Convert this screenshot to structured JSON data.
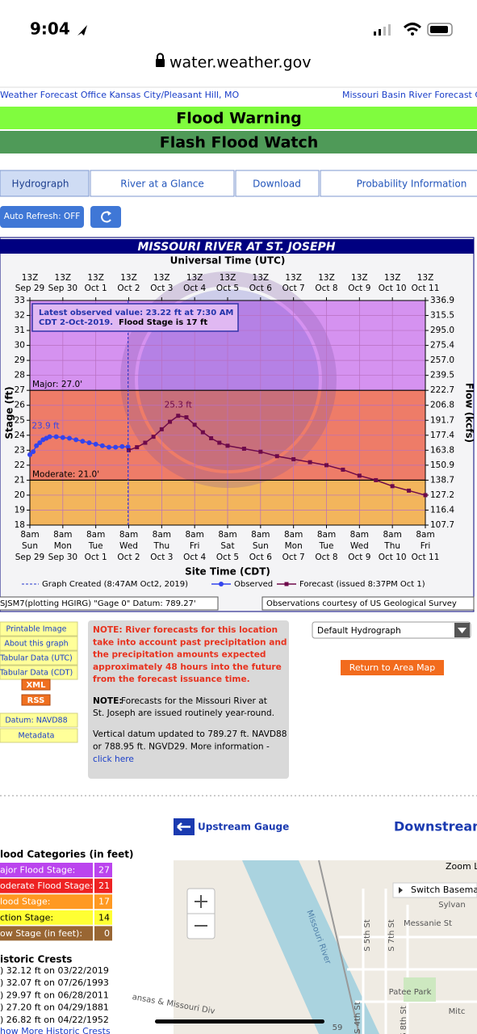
{
  "status_bar": {
    "time": "9:04"
  },
  "browser": {
    "url": "water.weather.gov"
  },
  "header": {
    "left_link": "Weather Forecast Office Kansas City/Pleasant Hill, MO",
    "right_link": "Missouri Basin River Forecast C"
  },
  "banners": [
    "Flood Warning",
    "Flash Flood Watch"
  ],
  "tabs": [
    "Hydrograph",
    "River at a Glance",
    "Download",
    "Probability Information"
  ],
  "auto_refresh": "Auto Refresh: OFF",
  "chart_data": {
    "type": "line",
    "title": "MISSOURI RIVER AT ST. JOSEPH",
    "subtitle": "Universal Time (UTC)",
    "x_label": "Site Time (CDT)",
    "y_label": "Stage (ft)",
    "y2_label": "Flow (kcfs)",
    "xlim": [
      0,
      12
    ],
    "ylim": [
      18,
      33
    ],
    "yticks": [
      18,
      19,
      20,
      21,
      22,
      23,
      24,
      25,
      26,
      27,
      28,
      29,
      30,
      31,
      32,
      33
    ],
    "flow_ticks": [
      {
        "value": 18,
        "label": "107.7"
      },
      {
        "value": 19,
        "label": "116.4"
      },
      {
        "value": 20,
        "label": "127.2"
      },
      {
        "value": 21,
        "label": "138.7"
      },
      {
        "value": 22,
        "label": "150.9"
      },
      {
        "value": 23,
        "label": "163.8"
      },
      {
        "value": 24,
        "label": "177.4"
      },
      {
        "value": 25,
        "label": "191.7"
      },
      {
        "value": 26,
        "label": "206.8"
      },
      {
        "value": 27,
        "label": "222.7"
      },
      {
        "value": 28,
        "label": "239.5"
      },
      {
        "value": 29,
        "label": "257.0"
      },
      {
        "value": 30,
        "label": "275.4"
      },
      {
        "value": 31,
        "label": "295.0"
      },
      {
        "value": 32,
        "label": "315.5"
      },
      {
        "value": 33,
        "label": "336.9"
      }
    ],
    "xticks": [
      {
        "value": 0,
        "label": "8am"
      },
      {
        "value": 1,
        "label": "8am"
      },
      {
        "value": 2,
        "label": "8am"
      },
      {
        "value": 3,
        "label": "8am"
      },
      {
        "value": 4,
        "label": "8am"
      },
      {
        "value": 5,
        "label": "8am"
      },
      {
        "value": 6,
        "label": "8am"
      },
      {
        "value": 7,
        "label": "8am"
      },
      {
        "value": 8,
        "label": "8am"
      },
      {
        "value": 9,
        "label": "8am"
      },
      {
        "value": 10,
        "label": "8am"
      },
      {
        "value": 11,
        "label": "8am"
      },
      {
        "value": 12,
        "label": "8am"
      }
    ],
    "top_xticks": [
      {
        "value": 0,
        "label": "13Z"
      },
      {
        "value": 1,
        "label": "13Z"
      },
      {
        "value": 2,
        "label": "13Z"
      },
      {
        "value": 3,
        "label": "13Z"
      },
      {
        "value": 4,
        "label": "13Z"
      },
      {
        "value": 5,
        "label": "13Z"
      },
      {
        "value": 6,
        "label": "13Z"
      },
      {
        "value": 7,
        "label": "13Z"
      },
      {
        "value": 8,
        "label": "13Z"
      },
      {
        "value": 9,
        "label": "13Z"
      },
      {
        "value": 10,
        "label": "13Z"
      },
      {
        "value": 11,
        "label": "13Z"
      },
      {
        "value": 12,
        "label": "13Z"
      }
    ],
    "x_tick_days": [
      "Sun",
      "Mon",
      "Tue",
      "Wed",
      "Thu",
      "Fri",
      "Sat",
      "Sun",
      "Mon",
      "Tue",
      "Wed",
      "Thu",
      "Fri"
    ],
    "x_tick_dates": [
      "Sep 29",
      "Sep 30",
      "Oct 1",
      "Oct 2",
      "Oct 3",
      "Oct 4",
      "Oct 5",
      "Oct 6",
      "Oct 7",
      "Oct 8",
      "Oct 9",
      "Oct 10",
      "Oct 11"
    ],
    "thresholds": [
      {
        "label": "Major: 27.0'",
        "value": 27
      },
      {
        "label": "Moderate: 21.0'",
        "value": 21
      }
    ],
    "band_colors": [
      "#d592f0",
      "#ee7c68",
      "#f3b55c"
    ],
    "grid": true,
    "latest_note": [
      "Latest observed value: 23.22 ft at 7:30 AM",
      "CDT 2-Oct-2019."
    ],
    "flood_stage_note": "Flood Stage is 17 ft",
    "created_label": "Graph Created (8:47AM Oct2, 2019)",
    "series": [
      {
        "name": "Observed",
        "color": "#3344ee",
        "marker": "circle",
        "peak_label": "23.9 ft",
        "x": [
          0,
          0.1,
          0.2,
          0.3,
          0.4,
          0.5,
          0.6,
          0.8,
          1.0,
          1.2,
          1.4,
          1.6,
          1.8,
          2.0,
          2.2,
          2.4,
          2.6,
          2.8,
          2.98
        ],
        "values": [
          22.7,
          22.9,
          23.3,
          23.5,
          23.7,
          23.8,
          23.9,
          23.9,
          23.85,
          23.8,
          23.7,
          23.6,
          23.5,
          23.4,
          23.3,
          23.2,
          23.2,
          23.25,
          23.22
        ]
      },
      {
        "name": "Forecast (issued 8:37PM Oct 1)",
        "color": "#6e0a4a",
        "marker": "square",
        "peak_label": "25.3 ft",
        "x": [
          3.0,
          3.25,
          3.5,
          3.75,
          4.0,
          4.25,
          4.5,
          4.75,
          5.0,
          5.25,
          5.5,
          5.75,
          6.0,
          6.5,
          7,
          7.5,
          8,
          8.5,
          9,
          9.5,
          10,
          10.5,
          11,
          11.5,
          12
        ],
        "values": [
          23.0,
          23.2,
          23.5,
          23.9,
          24.4,
          24.9,
          25.3,
          25.2,
          24.7,
          24.2,
          23.8,
          23.5,
          23.3,
          23.1,
          22.9,
          22.6,
          22.4,
          22.2,
          22.0,
          21.7,
          21.3,
          21.0,
          20.6,
          20.3,
          20.0
        ]
      }
    ],
    "datum_note": "SJSM7(plotting HGIRG) \"Gage 0\" Datum: 789.27'",
    "courtesy": "Observations courtesy of US Geological Survey"
  },
  "side_links": [
    "Printable Image",
    "About this graph",
    "Tabular Data (UTC)",
    "Tabular Data (CDT)",
    "XML",
    "RSS",
    "Datum: NAVD88",
    "Metadata"
  ],
  "notes": {
    "warning": [
      "NOTE: River forecasts for this location",
      "take into account past precipitation and",
      "the precipitation amounts expected",
      "approximately 48 hours into the future",
      "from the forecast issuance time."
    ],
    "routine_label": "NOTE:",
    "routine": [
      " Forecasts for the Missouri River at",
      "St. Joseph are issued routinely year-round."
    ],
    "datum": [
      "Vertical datum updated to 789.27 ft. NAVD88",
      "or 788.95 ft. NGVD29.  More information -"
    ],
    "datum_link": "click here"
  },
  "dropdown": "Default Hydrograph",
  "return_button": "Return to Area Map",
  "gauges": {
    "upstream": "Upstream Gauge",
    "downstream": "Downstream"
  },
  "flood_categories": {
    "title": "lood Categories (in feet)",
    "rows": [
      {
        "label": "ajor Flood Stage:",
        "value": 27,
        "color": "#bb44ee"
      },
      {
        "label": "oderate Flood Stage:",
        "value": 21,
        "color": "#ee2222"
      },
      {
        "label": "lood Stage:",
        "value": 17,
        "color": "#ff9922"
      },
      {
        "label": "ction Stage:",
        "value": 14,
        "color": "#ffff33"
      },
      {
        "label": "ow Stage (in feet):",
        "value": 0,
        "color": "#996633"
      }
    ]
  },
  "historic_crests": {
    "title": "istoric Crests",
    "rows": [
      ") 32.12 ft on 03/22/2019",
      ") 32.07 ft on 07/26/1993",
      ") 29.97 ft on 06/28/2011",
      ") 27.20 ft on 04/29/1881",
      ") 26.82 ft on 04/22/1952"
    ],
    "more": "how More Historic Crests"
  },
  "map": {
    "zoom": "Zoom L",
    "switch": "Switch Basema",
    "labels": [
      "Missouri River",
      "S 5th St",
      "S 7th St",
      "Messanie St",
      "Sylvan",
      "Patee Park",
      "Mitc",
      "ansas & Missouri Div",
      "S 4th St",
      "S 8th St",
      "59"
    ]
  }
}
